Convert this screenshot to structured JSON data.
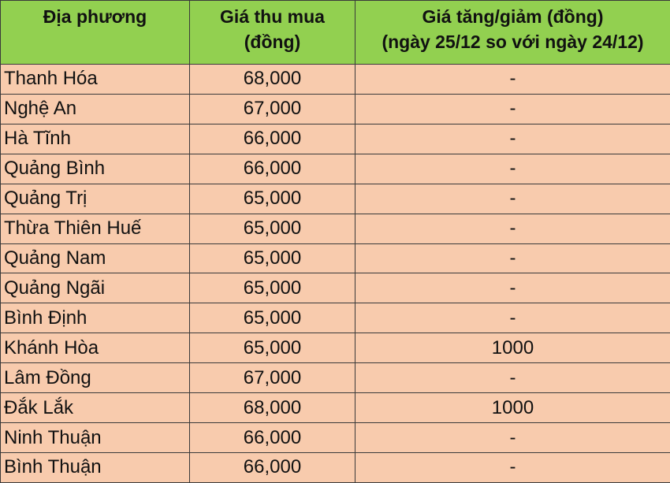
{
  "colors": {
    "header_bg": "#92d050",
    "row_bg": "#f8cbad",
    "border": "#3a3a3a"
  },
  "headers": [
    "Địa phương",
    "Giá thu mua (đồng)",
    "Giá tăng/giảm (đồng) (ngày 25/12 so với ngày 24/12)"
  ],
  "header_lines": [
    [
      "Địa phương"
    ],
    [
      "Giá thu mua",
      "(đồng)"
    ],
    [
      "Giá tăng/giảm (đồng)",
      "(ngày 25/12 so với ngày 24/12)"
    ]
  ],
  "rows": [
    [
      "Thanh Hóa",
      "68,000",
      "-"
    ],
    [
      "Nghệ An",
      "67,000",
      "-"
    ],
    [
      "Hà Tĩnh",
      "66,000",
      "-"
    ],
    [
      "Quảng Bình",
      "66,000",
      "-"
    ],
    [
      "Quảng Trị",
      "65,000",
      "-"
    ],
    [
      "Thừa Thiên Huế",
      "65,000",
      "-"
    ],
    [
      "Quảng Nam",
      "65,000",
      "-"
    ],
    [
      "Quảng Ngãi",
      "65,000",
      "-"
    ],
    [
      "Bình Định",
      "65,000",
      "-"
    ],
    [
      "Khánh Hòa",
      "65,000",
      "1000"
    ],
    [
      "Lâm Đồng",
      "67,000",
      "-"
    ],
    [
      "Đắk Lắk",
      "68,000",
      "1000"
    ],
    [
      "Ninh Thuận",
      "66,000",
      "-"
    ],
    [
      "Bình Thuận",
      "66,000",
      "-"
    ]
  ]
}
